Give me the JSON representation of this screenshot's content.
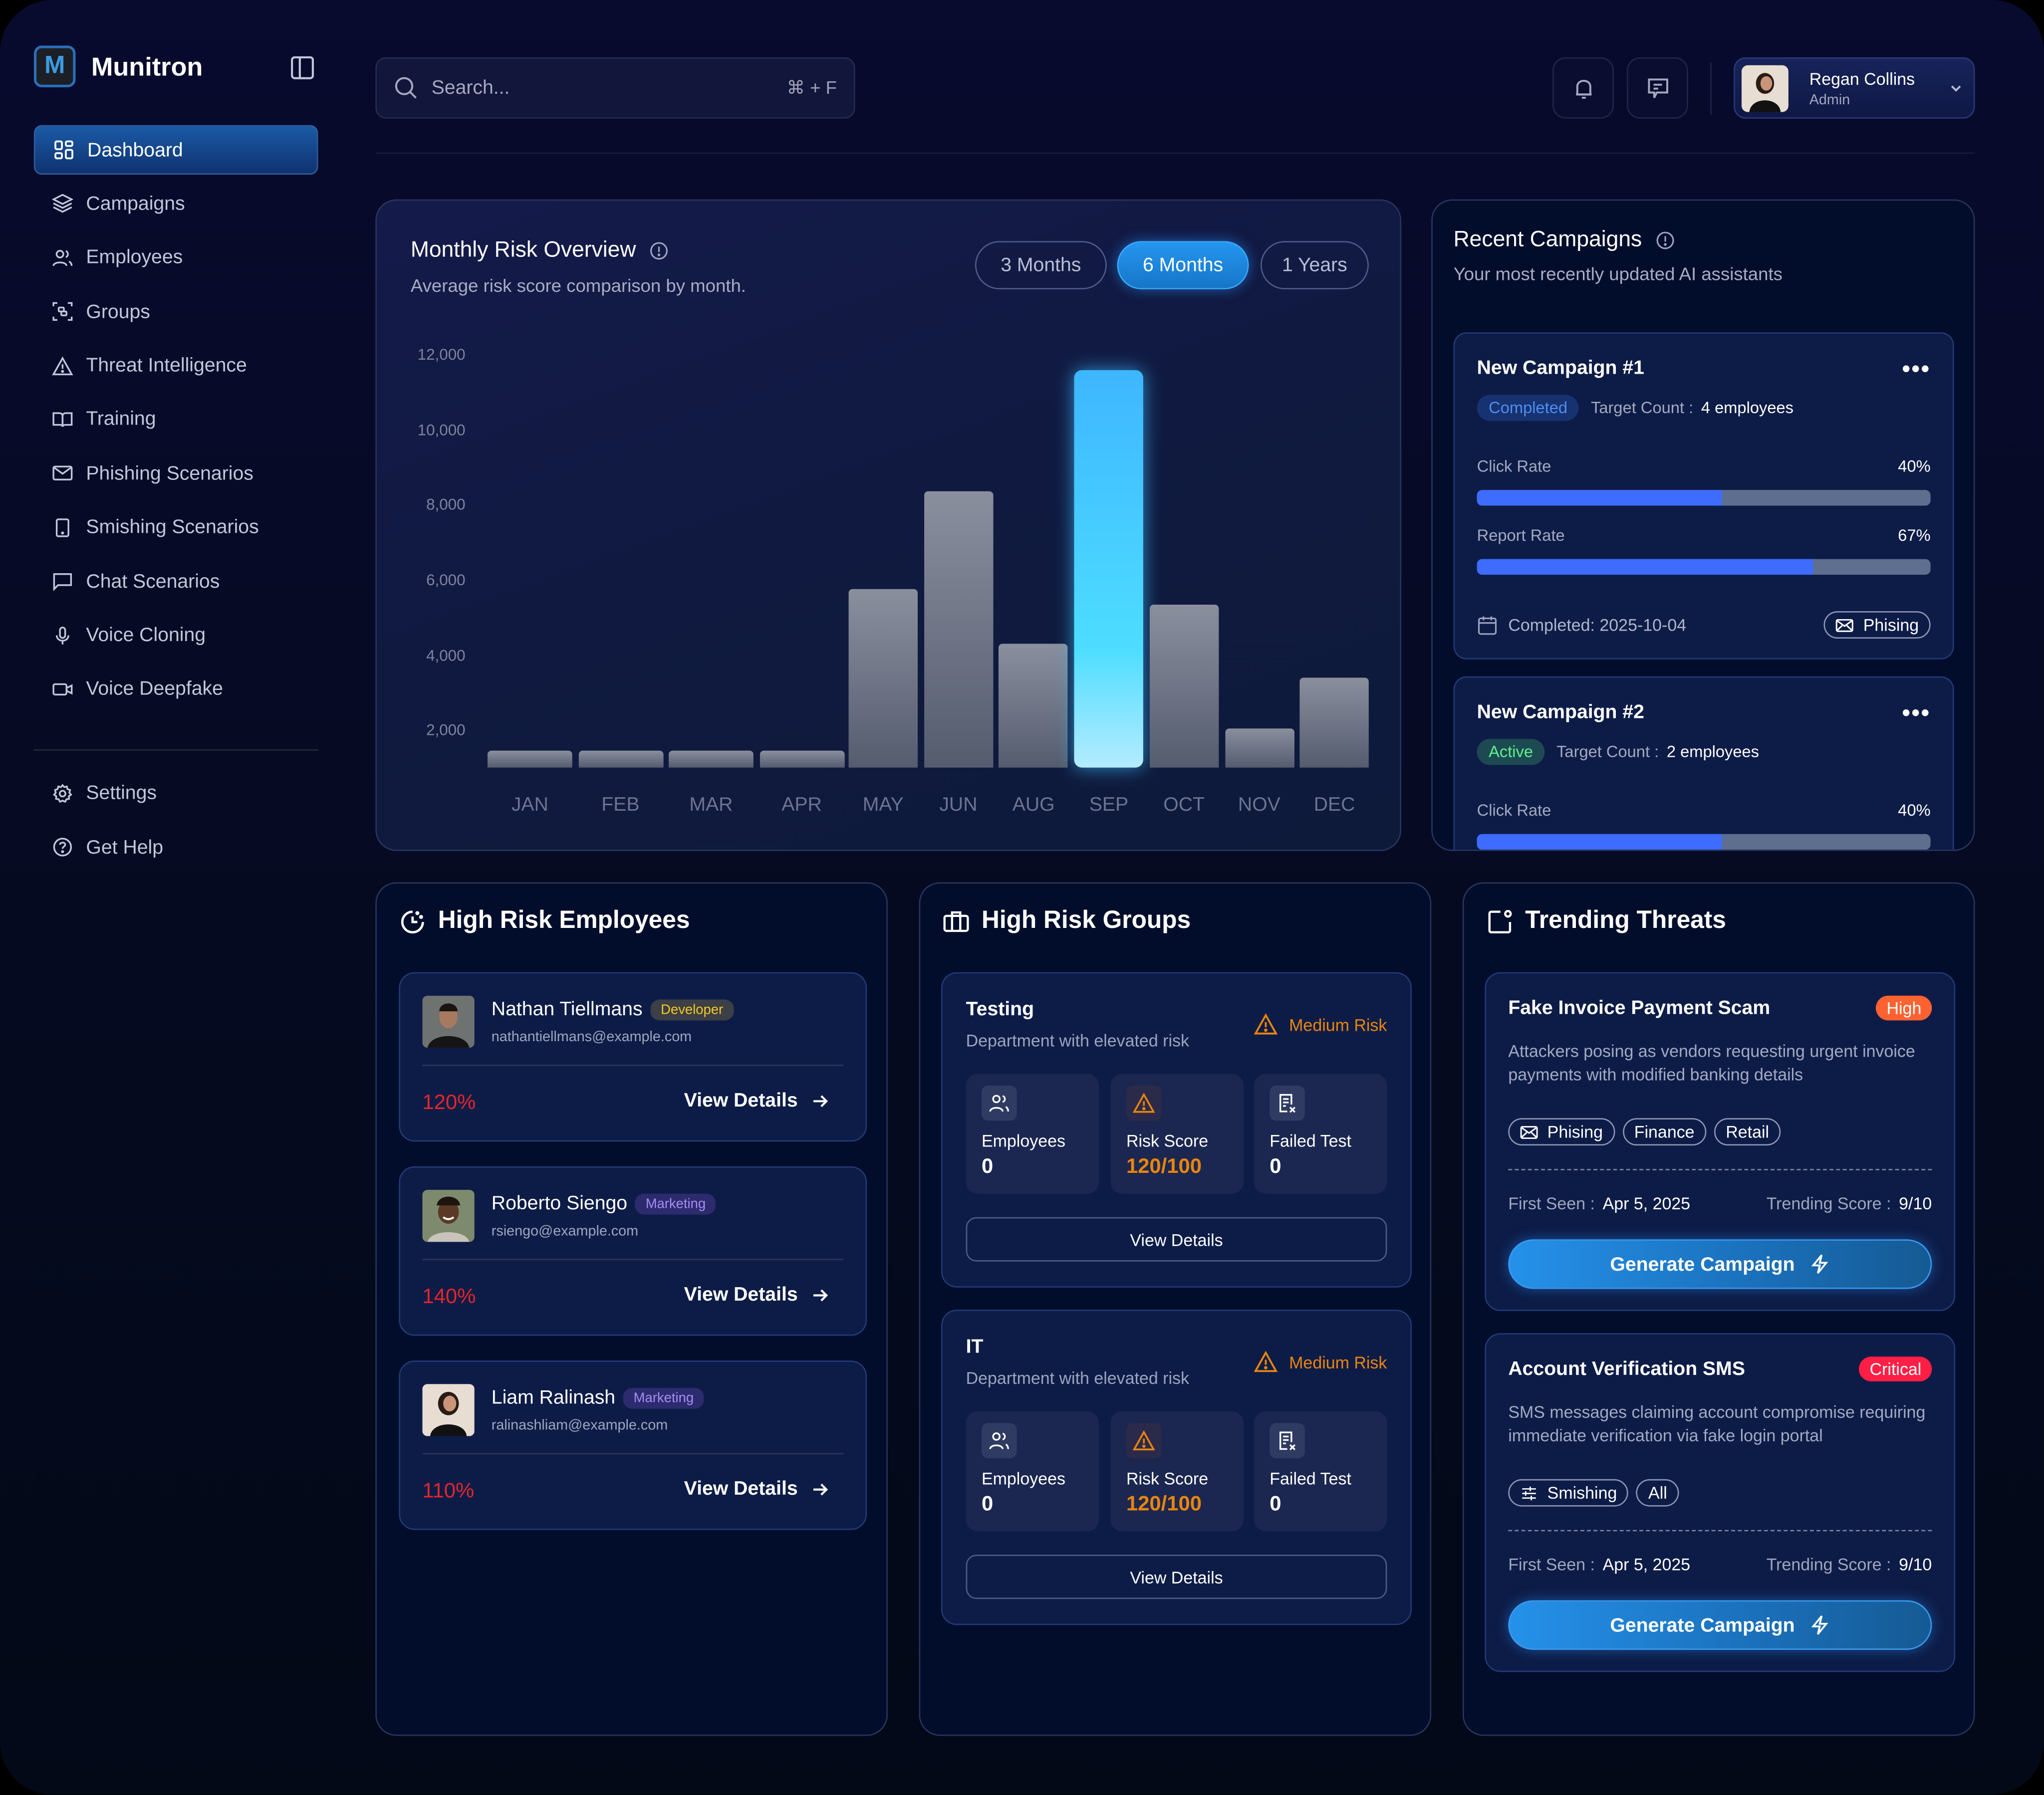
{
  "app": {
    "name": "Munitron",
    "logo_letter": "M"
  },
  "sidebar": {
    "items": [
      {
        "label": "Dashboard",
        "icon": "dashboard-grid-icon",
        "active": true
      },
      {
        "label": "Campaigns",
        "icon": "layers-icon"
      },
      {
        "label": "Employees",
        "icon": "users-icon"
      },
      {
        "label": "Groups",
        "icon": "group-scan-icon"
      },
      {
        "label": "Threat Intelligence",
        "icon": "warning-triangle-icon"
      },
      {
        "label": "Training",
        "icon": "book-open-icon"
      },
      {
        "label": "Phishing Scenarios",
        "icon": "mail-icon"
      },
      {
        "label": "Smishing Scenarios",
        "icon": "tablet-icon"
      },
      {
        "label": "Chat Scenarios",
        "icon": "chat-bubble-icon"
      },
      {
        "label": "Voice Cloning",
        "icon": "microphone-icon"
      },
      {
        "label": "Voice Deepfake",
        "icon": "video-camera-icon"
      }
    ],
    "footer_items": [
      {
        "label": "Settings",
        "icon": "gear-icon"
      },
      {
        "label": "Get Help",
        "icon": "help-circle-icon"
      }
    ]
  },
  "header": {
    "search": {
      "placeholder": "Search...",
      "shortcut": "⌘ + F"
    },
    "user": {
      "name": "Regan Collins",
      "role": "Admin"
    }
  },
  "chart_card": {
    "title": "Monthly Risk Overview",
    "subtitle": "Average risk score comparison by month.",
    "ranges": [
      "3 Months",
      "6 Months",
      "1 Years"
    ],
    "selected_range": "6 Months"
  },
  "chart_data": {
    "type": "bar",
    "title": "Monthly Risk Overview",
    "subtitle": "Average risk score comparison by month.",
    "categories": [
      "JAN",
      "FEB",
      "MAR",
      "APR",
      "MAY",
      "JUN",
      "AUG",
      "SEP",
      "OCT",
      "NOV",
      "DEC"
    ],
    "values": [
      1450,
      1450,
      1450,
      1450,
      5750,
      8350,
      4300,
      11600,
      5350,
      2050,
      3400
    ],
    "highlighted": "SEP",
    "y_ticks": [
      "2,000",
      "4,000",
      "6,000",
      "8,000",
      "10,000",
      "12,000"
    ],
    "ylim": [
      1000,
      12000
    ],
    "xlabel": "",
    "ylabel": "",
    "grid": false,
    "colors": {
      "default": "#7a8090",
      "highlight": "#3ec4ff"
    }
  },
  "recent_campaigns": {
    "title": "Recent Campaigns",
    "subtitle": "Your most recently updated AI assistants",
    "items": [
      {
        "name": "New Campaign #1",
        "status": "Completed",
        "target_label": "Target Count :",
        "target_value": "4 employees",
        "click_rate_label": "Click Rate",
        "click_rate": "40%",
        "click_fill": 54,
        "report_rate_label": "Report Rate",
        "report_rate": "67%",
        "report_fill": 74,
        "date": "Completed: 2025-10-04",
        "type": "Phising"
      },
      {
        "name": "New Campaign #2",
        "status": "Active",
        "target_label": "Target Count :",
        "target_value": "2 employees",
        "click_rate_label": "Click Rate",
        "click_rate": "40%",
        "click_fill": 54
      }
    ]
  },
  "high_risk_employees": {
    "title": "High Risk Employees",
    "view_label": "View Details",
    "items": [
      {
        "name": "Nathan Tiellmans",
        "dept": "Developer",
        "email": "nathantiellmans@example.com",
        "risk": "120%"
      },
      {
        "name": "Roberto Siengo",
        "dept": "Marketing",
        "email": "rsiengo@example.com",
        "risk": "140%"
      },
      {
        "name": "Liam Ralinash",
        "dept": "Marketing",
        "email": "ralinashliam@example.com",
        "risk": "110%"
      }
    ]
  },
  "high_risk_groups": {
    "title": "High Risk Groups",
    "items": [
      {
        "name": "Testing",
        "desc": "Department with elevated risk",
        "risk_level": "Medium Risk",
        "employees_label": "Employees",
        "employees": "0",
        "score_label": "Risk Score",
        "score": "120/100",
        "failed_label": "Failed Test",
        "failed": "0",
        "button": "View Details"
      },
      {
        "name": "IT",
        "desc": "Department with elevated risk",
        "risk_level": "Medium Risk",
        "employees_label": "Employees",
        "employees": "0",
        "score_label": "Risk Score",
        "score": "120/100",
        "failed_label": "Failed Test",
        "failed": "0",
        "button": "View Details"
      }
    ]
  },
  "trending_threats": {
    "title": "Trending Threats",
    "items": [
      {
        "title": "Fake Invoice Payment Scam",
        "severity": "High",
        "desc": "Attackers posing as vendors requesting urgent invoice payments with modified banking details",
        "tags": [
          "Phising",
          "Finance",
          "Retail"
        ],
        "first_seen_label": "First Seen :",
        "first_seen": "Apr 5, 2025",
        "score_label": "Trending Score :",
        "score": "9/10",
        "button": "Generate Campaign"
      },
      {
        "title": "Account Verification SMS",
        "severity": "Critical",
        "desc": "SMS messages claiming account compromise requiring immediate verification via fake login portal",
        "tags": [
          "Smishing",
          "All"
        ],
        "first_seen_label": "First Seen :",
        "first_seen": "Apr 5, 2025",
        "score_label": "Trending Score :",
        "score": "9/10",
        "button": "Generate Campaign"
      }
    ]
  }
}
